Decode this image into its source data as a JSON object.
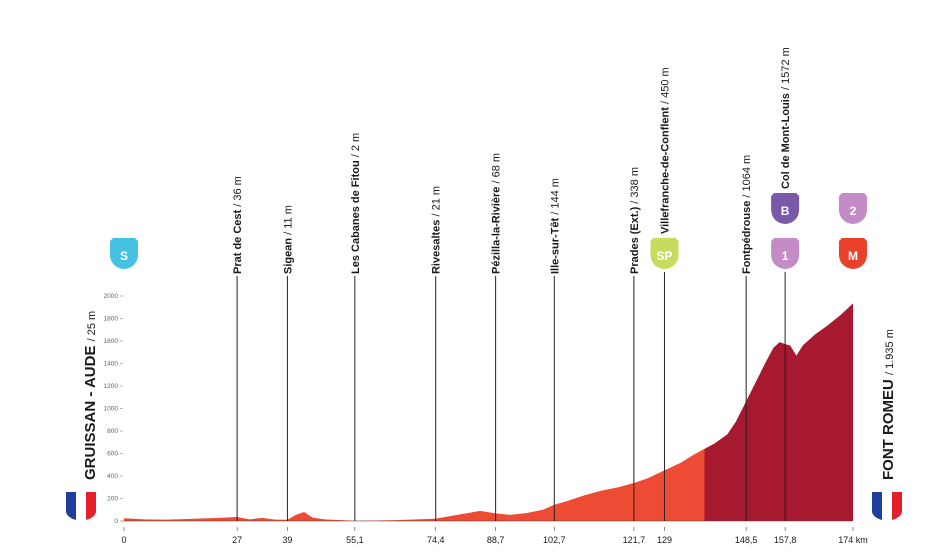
{
  "chart_data": {
    "type": "profile",
    "xlim": [
      0,
      174
    ],
    "ylim": [
      0,
      2000
    ],
    "yticks": [
      0,
      200,
      400,
      600,
      800,
      1000,
      1200,
      1400,
      1600,
      1800,
      2000
    ],
    "xticks": [
      0,
      27,
      39,
      {
        "value": 55.1,
        "label": "55,1"
      },
      {
        "value": 74.4,
        "label": "74,4"
      },
      {
        "value": 88.7,
        "label": "88,7"
      },
      {
        "value": 102.7,
        "label": "102,7"
      },
      {
        "value": 121.7,
        "label": "121,7"
      },
      129,
      {
        "value": 148.5,
        "label": "148,5"
      },
      {
        "value": 157.8,
        "label": "157,8"
      },
      {
        "value": 174,
        "label": "174 km"
      }
    ],
    "x": [
      0,
      5,
      10,
      15,
      20,
      24,
      27,
      30,
      33,
      36,
      39,
      41,
      43,
      45,
      48,
      52,
      55.1,
      60,
      65,
      70,
      74.4,
      78,
      82,
      85,
      88.7,
      92,
      96,
      100,
      102.7,
      106,
      110,
      114,
      118,
      121.7,
      125,
      129,
      133,
      136,
      138.5,
      141,
      144,
      146,
      148.5,
      151,
      153,
      155,
      156.5,
      157.8,
      159,
      160.5,
      162,
      165,
      168,
      171,
      174
    ],
    "values": [
      25,
      15,
      12,
      18,
      25,
      30,
      36,
      15,
      28,
      12,
      11,
      55,
      80,
      30,
      15,
      8,
      2,
      5,
      8,
      15,
      21,
      45,
      70,
      90,
      68,
      55,
      70,
      100,
      144,
      180,
      230,
      270,
      300,
      338,
      380,
      450,
      520,
      590,
      640,
      690,
      770,
      880,
      1064,
      1250,
      1400,
      1540,
      1590,
      1572,
      1560,
      1470,
      1560,
      1660,
      1740,
      1830,
      1935
    ],
    "segments": [
      {
        "from": 0,
        "color": "#ee4b34"
      },
      {
        "from": 138.5,
        "color": "#a6192e"
      }
    ],
    "start": {
      "name": "GRUISSAN - AUDE",
      "alt": "/ 25 m"
    },
    "finish": {
      "name": "FONT ROMEU",
      "alt": "/ 1.935 m"
    },
    "waypoints": [
      {
        "km": 27,
        "name": "Prat de Cest",
        "alt": "/ 36 m"
      },
      {
        "km": 39,
        "name": "Sigean",
        "alt": "/ 11 m"
      },
      {
        "km": 55.1,
        "name": "Les Cabanes de Fitou",
        "alt": "/ 2 m"
      },
      {
        "km": 74.4,
        "name": "Rivesaltes",
        "alt": "/ 21 m"
      },
      {
        "km": 88.7,
        "name": "Pézilla-la-Rivière",
        "alt": "/ 68 m"
      },
      {
        "km": 102.7,
        "name": "Ille-sur-Têt",
        "alt": "/ 144 m"
      },
      {
        "km": 121.7,
        "name": "Prades (Ext.)",
        "alt": "/ 338 m"
      },
      {
        "km": 129,
        "name": "Villefranche-de-Conflent",
        "alt": "/ 450 m"
      },
      {
        "km": 148.5,
        "name": "Fontpédrouse",
        "alt": "/ 1064 m"
      },
      {
        "km": 157.8,
        "name": "Col de Mont-Louis",
        "alt": "/ 1572 m"
      }
    ],
    "icons": [
      {
        "km": 0,
        "text": "S",
        "color": "#45c1e2",
        "level": 0
      },
      {
        "km": 129,
        "text": "SP",
        "color": "#c5dc5c",
        "level": 0
      },
      {
        "km": 157.8,
        "text": "1",
        "color": "#c48bc6",
        "level": 0
      },
      {
        "km": 157.8,
        "text": "B",
        "color": "#7a5aa8",
        "level": 1
      },
      {
        "km": 174,
        "text": "M",
        "color": "#e9422b",
        "level": 0
      },
      {
        "km": 174,
        "text": "2",
        "color": "#c48bc6",
        "level": 1
      }
    ]
  }
}
